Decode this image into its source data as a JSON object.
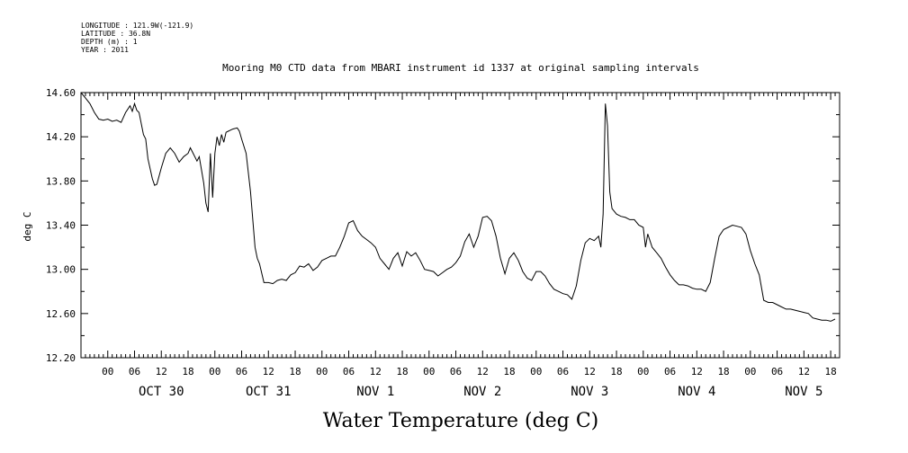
{
  "header": {
    "lines": [
      "LONGITUDE : 121.9W(-121.9)",
      "LATITUDE : 36.8N",
      "DEPTH (m) : 1",
      "YEAR : 2011"
    ]
  },
  "chart_data": {
    "type": "line",
    "title": "Mooring M0 CTD data from MBARI instrument id 1337 at original sampling intervals",
    "xlabel": "Water Temperature (deg C)",
    "ylabel": "deg C",
    "ylim": [
      12.2,
      14.6
    ],
    "y_ticks": [
      "12.20",
      "12.60",
      "13.00",
      "13.40",
      "13.80",
      "14.20",
      "14.60"
    ],
    "x_unit": "hours since OCT 30 00:00",
    "xlim": [
      -6,
      164
    ],
    "hour_ticks": [
      "00",
      "06",
      "12",
      "18",
      "00",
      "06",
      "12",
      "18",
      "00",
      "06",
      "12",
      "18",
      "00",
      "06",
      "12",
      "18",
      "00",
      "06",
      "12",
      "18",
      "00",
      "06",
      "12",
      "18",
      "00",
      "06",
      "12",
      "18"
    ],
    "day_labels": [
      "OCT 30",
      "OCT 31",
      "NOV  1",
      "NOV  2",
      "NOV  3",
      "NOV  4",
      "NOV  5"
    ],
    "grid": false,
    "series": [
      {
        "color": "#000000",
        "points": [
          [
            -6,
            14.6
          ],
          [
            -5,
            14.55
          ],
          [
            -4,
            14.5
          ],
          [
            -3,
            14.42
          ],
          [
            -2,
            14.36
          ],
          [
            -1,
            14.35
          ],
          [
            0,
            14.36
          ],
          [
            1,
            14.34
          ],
          [
            2,
            14.35
          ],
          [
            3,
            14.33
          ],
          [
            4,
            14.42
          ],
          [
            5,
            14.48
          ],
          [
            5.5,
            14.43
          ],
          [
            6,
            14.5
          ],
          [
            6.5,
            14.44
          ],
          [
            7,
            14.42
          ],
          [
            8,
            14.22
          ],
          [
            8.5,
            14.18
          ],
          [
            9,
            14.0
          ],
          [
            10,
            13.82
          ],
          [
            10.5,
            13.76
          ],
          [
            11,
            13.77
          ],
          [
            12,
            13.92
          ],
          [
            13,
            14.05
          ],
          [
            14,
            14.1
          ],
          [
            15,
            14.05
          ],
          [
            16,
            13.97
          ],
          [
            17,
            14.02
          ],
          [
            18,
            14.05
          ],
          [
            18.5,
            14.1
          ],
          [
            19,
            14.06
          ],
          [
            20,
            13.98
          ],
          [
            20.5,
            14.02
          ],
          [
            21,
            13.9
          ],
          [
            21.5,
            13.78
          ],
          [
            22,
            13.6
          ],
          [
            22.5,
            13.52
          ],
          [
            23,
            14.05
          ],
          [
            23.5,
            13.65
          ],
          [
            24,
            14.05
          ],
          [
            24.5,
            14.2
          ],
          [
            25,
            14.12
          ],
          [
            25.5,
            14.22
          ],
          [
            26,
            14.15
          ],
          [
            26.5,
            14.24
          ],
          [
            27,
            14.25
          ],
          [
            28,
            14.27
          ],
          [
            29,
            14.28
          ],
          [
            29.5,
            14.25
          ],
          [
            30,
            14.18
          ],
          [
            31,
            14.05
          ],
          [
            32,
            13.7
          ],
          [
            33,
            13.2
          ],
          [
            33.5,
            13.1
          ],
          [
            34,
            13.05
          ],
          [
            35,
            12.88
          ],
          [
            36,
            12.88
          ],
          [
            37,
            12.87
          ],
          [
            38,
            12.9
          ],
          [
            39,
            12.91
          ],
          [
            40,
            12.9
          ],
          [
            41,
            12.95
          ],
          [
            42,
            12.97
          ],
          [
            43,
            13.03
          ],
          [
            44,
            13.02
          ],
          [
            45,
            13.05
          ],
          [
            46,
            12.99
          ],
          [
            47,
            13.02
          ],
          [
            48,
            13.08
          ],
          [
            49,
            13.1
          ],
          [
            50,
            13.12
          ],
          [
            51,
            13.12
          ],
          [
            52,
            13.2
          ],
          [
            53,
            13.3
          ],
          [
            54,
            13.42
          ],
          [
            55,
            13.44
          ],
          [
            56,
            13.35
          ],
          [
            57,
            13.3
          ],
          [
            58,
            13.27
          ],
          [
            59,
            13.24
          ],
          [
            60,
            13.2
          ],
          [
            61,
            13.1
          ],
          [
            62,
            13.05
          ],
          [
            63,
            13.0
          ],
          [
            64,
            13.1
          ],
          [
            65,
            13.15
          ],
          [
            66,
            13.03
          ],
          [
            67,
            13.16
          ],
          [
            68,
            13.12
          ],
          [
            69,
            13.15
          ],
          [
            70,
            13.08
          ],
          [
            71,
            13.0
          ],
          [
            72,
            12.99
          ],
          [
            73,
            12.98
          ],
          [
            74,
            12.94
          ],
          [
            75,
            12.97
          ],
          [
            76,
            13.0
          ],
          [
            77,
            13.02
          ],
          [
            78,
            13.06
          ],
          [
            79,
            13.12
          ],
          [
            80,
            13.25
          ],
          [
            81,
            13.32
          ],
          [
            82,
            13.2
          ],
          [
            83,
            13.3
          ],
          [
            84,
            13.47
          ],
          [
            85,
            13.48
          ],
          [
            86,
            13.44
          ],
          [
            87,
            13.3
          ],
          [
            88,
            13.1
          ],
          [
            89,
            12.96
          ],
          [
            90,
            13.1
          ],
          [
            91,
            13.15
          ],
          [
            92,
            13.08
          ],
          [
            93,
            12.98
          ],
          [
            94,
            12.92
          ],
          [
            95,
            12.9
          ],
          [
            96,
            12.98
          ],
          [
            97,
            12.98
          ],
          [
            98,
            12.94
          ],
          [
            99,
            12.87
          ],
          [
            100,
            12.82
          ],
          [
            101,
            12.8
          ],
          [
            102,
            12.78
          ],
          [
            103,
            12.77
          ],
          [
            104,
            12.73
          ],
          [
            105,
            12.85
          ],
          [
            106,
            13.08
          ],
          [
            107,
            13.24
          ],
          [
            108,
            13.28
          ],
          [
            109,
            13.26
          ],
          [
            110,
            13.3
          ],
          [
            110.5,
            13.2
          ],
          [
            111,
            13.5
          ],
          [
            111.5,
            14.5
          ],
          [
            112,
            14.3
          ],
          [
            112.5,
            13.7
          ],
          [
            113,
            13.55
          ],
          [
            114,
            13.5
          ],
          [
            115,
            13.48
          ],
          [
            116,
            13.47
          ],
          [
            117,
            13.45
          ],
          [
            118,
            13.45
          ],
          [
            119,
            13.4
          ],
          [
            120,
            13.38
          ],
          [
            120.5,
            13.2
          ],
          [
            121,
            13.32
          ],
          [
            122,
            13.2
          ],
          [
            123,
            13.15
          ],
          [
            124,
            13.1
          ],
          [
            125,
            13.02
          ],
          [
            126,
            12.95
          ],
          [
            127,
            12.9
          ],
          [
            128,
            12.86
          ],
          [
            129,
            12.86
          ],
          [
            130,
            12.85
          ],
          [
            131,
            12.83
          ],
          [
            132,
            12.82
          ],
          [
            133,
            12.82
          ],
          [
            134,
            12.8
          ],
          [
            135,
            12.88
          ],
          [
            136,
            13.1
          ],
          [
            137,
            13.3
          ],
          [
            138,
            13.36
          ],
          [
            139,
            13.38
          ],
          [
            140,
            13.4
          ],
          [
            141,
            13.39
          ],
          [
            142,
            13.38
          ],
          [
            143,
            13.32
          ],
          [
            144,
            13.17
          ],
          [
            145,
            13.05
          ],
          [
            146,
            12.95
          ],
          [
            147,
            12.72
          ],
          [
            148,
            12.7
          ],
          [
            149,
            12.7
          ],
          [
            150,
            12.68
          ],
          [
            151,
            12.66
          ],
          [
            152,
            12.64
          ],
          [
            153,
            12.64
          ],
          [
            154,
            12.63
          ],
          [
            155,
            12.62
          ],
          [
            156,
            12.61
          ],
          [
            157,
            12.6
          ],
          [
            158,
            12.56
          ],
          [
            159,
            12.55
          ],
          [
            160,
            12.54
          ],
          [
            161,
            12.54
          ],
          [
            162,
            12.53
          ],
          [
            163,
            12.55
          ]
        ]
      }
    ]
  }
}
